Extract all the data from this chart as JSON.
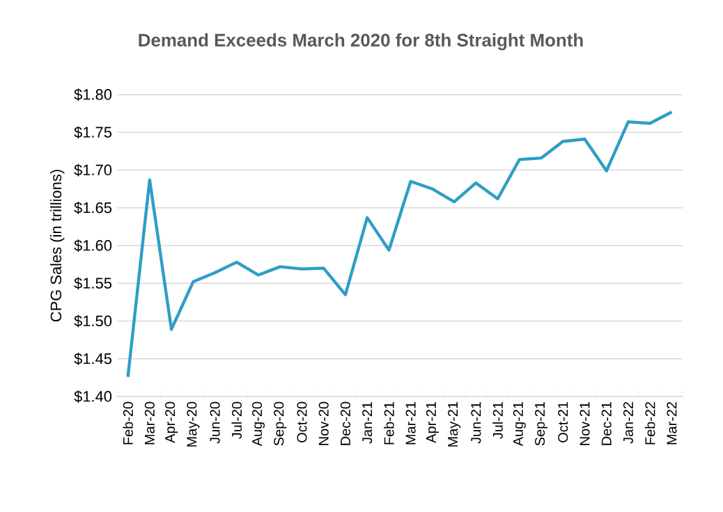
{
  "chart_data": {
    "type": "line",
    "title": "Demand Exceeds March 2020 for 8th Straight Month",
    "ylabel": "CPG Sales (in trillions)",
    "categories": [
      "Feb-20",
      "Mar-20",
      "Apr-20",
      "May-20",
      "Jun-20",
      "Jul-20",
      "Aug-20",
      "Sep-20",
      "Oct-20",
      "Nov-20",
      "Dec-20",
      "Jan-21",
      "Feb-21",
      "Mar-21",
      "Apr-21",
      "May-21",
      "Jun-21",
      "Jul-21",
      "Aug-21",
      "Sep-21",
      "Oct-21",
      "Nov-21",
      "Dec-21",
      "Jan-22",
      "Feb-22",
      "Mar-22"
    ],
    "series": [
      {
        "color": "#2e9ec6",
        "values": [
          1.426,
          1.687,
          1.489,
          1.552,
          1.564,
          1.578,
          1.561,
          1.572,
          1.569,
          1.57,
          1.535,
          1.637,
          1.594,
          1.685,
          1.675,
          1.658,
          1.683,
          1.662,
          1.714,
          1.716,
          1.738,
          1.741,
          1.699,
          1.764,
          1.762,
          1.777
        ]
      }
    ],
    "ylim": [
      1.4,
      1.8
    ],
    "yticks": [
      {
        "value": 1.4,
        "label": "$1.40"
      },
      {
        "value": 1.45,
        "label": "$1.45"
      },
      {
        "value": 1.5,
        "label": "$1.50"
      },
      {
        "value": 1.55,
        "label": "$1.55"
      },
      {
        "value": 1.6,
        "label": "$1.60"
      },
      {
        "value": 1.65,
        "label": "$1.65"
      },
      {
        "value": 1.7,
        "label": "$1.70"
      },
      {
        "value": 1.75,
        "label": "$1.75"
      },
      {
        "value": 1.8,
        "label": "$1.80"
      }
    ],
    "grid": "y",
    "marker": "none",
    "line_style": "solid"
  }
}
